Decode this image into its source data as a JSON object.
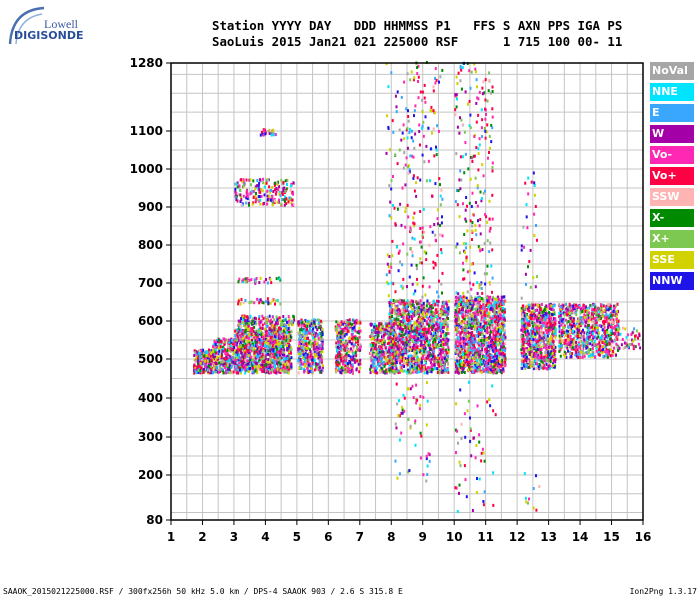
{
  "logo": {
    "company": "Lowell",
    "product": "DIGISONDE"
  },
  "header": {
    "labels": "Station YYYY DAY   DDD HHMMSS P1   FFS S AXN PPS IGA PS",
    "values": "SaoLuis 2015 Jan21 021 225000 RSF      1 715 100 00- 11"
  },
  "legend": [
    {
      "label": "NoVal",
      "color": "#a6a6a6"
    },
    {
      "label": "NNE",
      "color": "#00e4ff"
    },
    {
      "label": "E",
      "color": "#3aa7ff"
    },
    {
      "label": "W",
      "color": "#a400a8"
    },
    {
      "label": "Vo-",
      "color": "#ff28b4"
    },
    {
      "label": "Vo+",
      "color": "#ff0044"
    },
    {
      "label": "SSW",
      "color": "#ffb4b4"
    },
    {
      "label": "X-",
      "color": "#008a00"
    },
    {
      "label": "X+",
      "color": "#7dc850"
    },
    {
      "label": "SSE",
      "color": "#d2d200"
    },
    {
      "label": "NNW",
      "color": "#1f14e8"
    }
  ],
  "footer": {
    "left": "SAAOK_2015021225000.RSF / 300fx256h 50 kHz 5.0 km / DPS-4 SAAOK 903 / 2.6 S 315.8 E",
    "right": "Ion2Png 1.3.17"
  },
  "chart_data": {
    "type": "scatter",
    "x_ticks": [
      1,
      2,
      3,
      4,
      5,
      6,
      7,
      8,
      9,
      10,
      11,
      12,
      13,
      14,
      15,
      16
    ],
    "y_ticks": [
      80,
      200,
      300,
      400,
      500,
      600,
      700,
      800,
      900,
      1000,
      1100,
      1280
    ],
    "xlim": [
      1,
      16
    ],
    "ylim": [
      80,
      1280
    ],
    "y_scale": "nonlinear (Digisonde height scale)",
    "grid": true,
    "legend_position": "right",
    "clusters": [
      {
        "x": [
          1.7,
          2.3
        ],
        "y": [
          460,
          520
        ],
        "density": 260
      },
      {
        "x": [
          2.3,
          3.0
        ],
        "y": [
          460,
          550
        ],
        "density": 280
      },
      {
        "x": [
          3.0,
          4.8
        ],
        "y": [
          460,
          575
        ],
        "density": 1050
      },
      {
        "x": [
          3.1,
          4.9
        ],
        "y": [
          575,
          610
        ],
        "density": 160
      },
      {
        "x": [
          5.0,
          5.8
        ],
        "y": [
          460,
          600
        ],
        "density": 420
      },
      {
        "x": [
          6.2,
          7.0
        ],
        "y": [
          460,
          600
        ],
        "density": 360
      },
      {
        "x": [
          7.3,
          8.1
        ],
        "y": [
          460,
          590
        ],
        "density": 380
      },
      {
        "x": [
          7.9,
          9.8
        ],
        "y": [
          460,
          650
        ],
        "density": 1250
      },
      {
        "x": [
          10.0,
          11.6
        ],
        "y": [
          460,
          660
        ],
        "density": 1300
      },
      {
        "x": [
          12.1,
          13.2
        ],
        "y": [
          470,
          640
        ],
        "density": 760
      },
      {
        "x": [
          13.3,
          15.2
        ],
        "y": [
          500,
          640
        ],
        "density": 780
      },
      {
        "x": [
          15.2,
          15.9
        ],
        "y": [
          520,
          580
        ],
        "density": 40
      },
      {
        "x": [
          3.0,
          4.9
        ],
        "y": [
          900,
          970
        ],
        "density": 200
      },
      {
        "x": [
          3.8,
          4.3
        ],
        "y": [
          1085,
          1100
        ],
        "density": 25
      },
      {
        "x": [
          3.1,
          4.5
        ],
        "y": [
          695,
          710
        ],
        "density": 30
      },
      {
        "x": [
          3.1,
          4.5
        ],
        "y": [
          640,
          655
        ],
        "density": 30
      },
      {
        "x": [
          7.8,
          9.6
        ],
        "y": [
          650,
          1280
        ],
        "density": 260
      },
      {
        "x": [
          10.0,
          11.2
        ],
        "y": [
          660,
          1280
        ],
        "density": 220
      },
      {
        "x": [
          12.1,
          12.6
        ],
        "y": [
          640,
          1000
        ],
        "density": 30
      },
      {
        "x": [
          8.1,
          9.2
        ],
        "y": [
          180,
          440
        ],
        "density": 55
      },
      {
        "x": [
          10.0,
          11.3
        ],
        "y": [
          90,
          440
        ],
        "density": 55
      },
      {
        "x": [
          12.2,
          12.8
        ],
        "y": [
          100,
          200
        ],
        "density": 10
      }
    ]
  }
}
